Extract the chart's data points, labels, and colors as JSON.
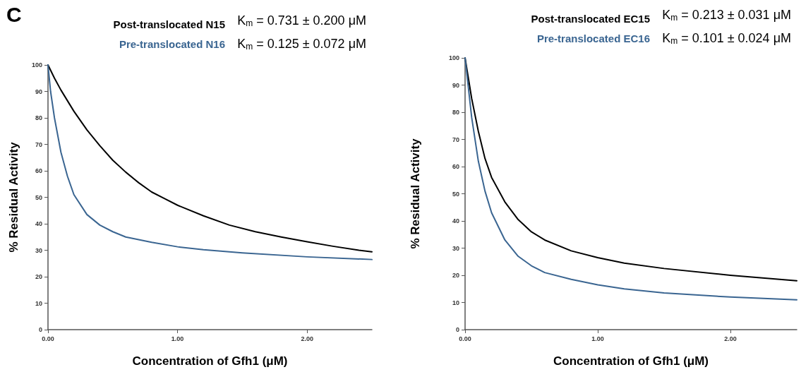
{
  "chart_data": [
    {
      "type": "line",
      "title": "C",
      "xlabel": "Concentration of Gfh1 (μM)",
      "ylabel": "% Residual Activity",
      "annotations": [
        "K$_{m}$ = 0.731 ± 0.200 μM",
        "K$_{m}$ = 0.125 ± 0.072 μM"
      ],
      "series": [
        {
          "name": "Post-translocated N15",
          "color": "#000000",
          "x": [
            0,
            0.05,
            0.1,
            0.2,
            0.3,
            0.4,
            0.5,
            0.6,
            0.7,
            0.8,
            0.9,
            1.0,
            1.2,
            1.4,
            1.6,
            1.8,
            2.0,
            2.2,
            2.4,
            2.5
          ],
          "values": [
            100,
            95,
            90.5,
            82.5,
            75.5,
            69.5,
            64,
            59.5,
            55.5,
            52,
            49.5,
            47,
            43,
            39.5,
            37,
            35,
            33.2,
            31.5,
            30,
            29.4
          ]
        },
        {
          "name": "Pre-translocated N16",
          "color": "#3a6591",
          "x": [
            0,
            0.02,
            0.05,
            0.1,
            0.15,
            0.2,
            0.3,
            0.4,
            0.5,
            0.6,
            0.8,
            1.0,
            1.2,
            1.5,
            2.0,
            2.5
          ],
          "values": [
            100,
            90,
            80,
            67,
            58,
            51,
            43.5,
            39.5,
            37,
            35,
            33,
            31.3,
            30.2,
            29,
            27.5,
            26.5
          ]
        }
      ],
      "xlim": [
        0,
        2.5
      ],
      "xticks": [
        {
          "value": 0,
          "label": "0.00"
        },
        {
          "value": 1,
          "label": "1.00"
        },
        {
          "value": 2,
          "label": "2.00"
        }
      ],
      "ylim": [
        0,
        100
      ],
      "yticks": [
        0,
        10,
        20,
        30,
        40,
        50,
        60,
        70,
        80,
        90,
        100
      ],
      "grid": false,
      "legend": "top",
      "marker": "none",
      "line_style": "solid"
    },
    {
      "type": "line",
      "xlabel": "Concentration of Gfh1 (μM)",
      "ylabel": "% Residual Activity",
      "annotations": [
        "K$_{m}$ = 0.213 ± 0.031 μM",
        "K$_{m}$ = 0.101 ± 0.024 μM"
      ],
      "series": [
        {
          "name": "Post-translocated EC15",
          "color": "#000000",
          "x": [
            0,
            0.05,
            0.1,
            0.15,
            0.2,
            0.3,
            0.4,
            0.5,
            0.6,
            0.8,
            1.0,
            1.2,
            1.5,
            2.0,
            2.5
          ],
          "values": [
            100,
            85,
            73,
            63,
            56,
            47,
            40.5,
            36,
            33,
            29,
            26.5,
            24.5,
            22.5,
            20,
            18
          ]
        },
        {
          "name": "Pre-translocated EC16",
          "color": "#3a6591",
          "x": [
            0,
            0.05,
            0.1,
            0.15,
            0.2,
            0.3,
            0.4,
            0.5,
            0.6,
            0.8,
            1.0,
            1.2,
            1.5,
            2.0,
            2.5
          ],
          "values": [
            100,
            78,
            62,
            51,
            43,
            33,
            27,
            23.5,
            21,
            18.5,
            16.5,
            15,
            13.5,
            12,
            11
          ]
        }
      ],
      "xlim": [
        0,
        2.5
      ],
      "xticks": [
        {
          "value": 0,
          "label": "0.00"
        },
        {
          "value": 1,
          "label": "1.00"
        },
        {
          "value": 2,
          "label": "2.00"
        }
      ],
      "ylim": [
        0,
        100
      ],
      "yticks": [
        0,
        10,
        20,
        30,
        40,
        50,
        60,
        70,
        80,
        90,
        100
      ],
      "grid": false,
      "legend": "top",
      "marker": "none",
      "line_style": "solid"
    }
  ]
}
